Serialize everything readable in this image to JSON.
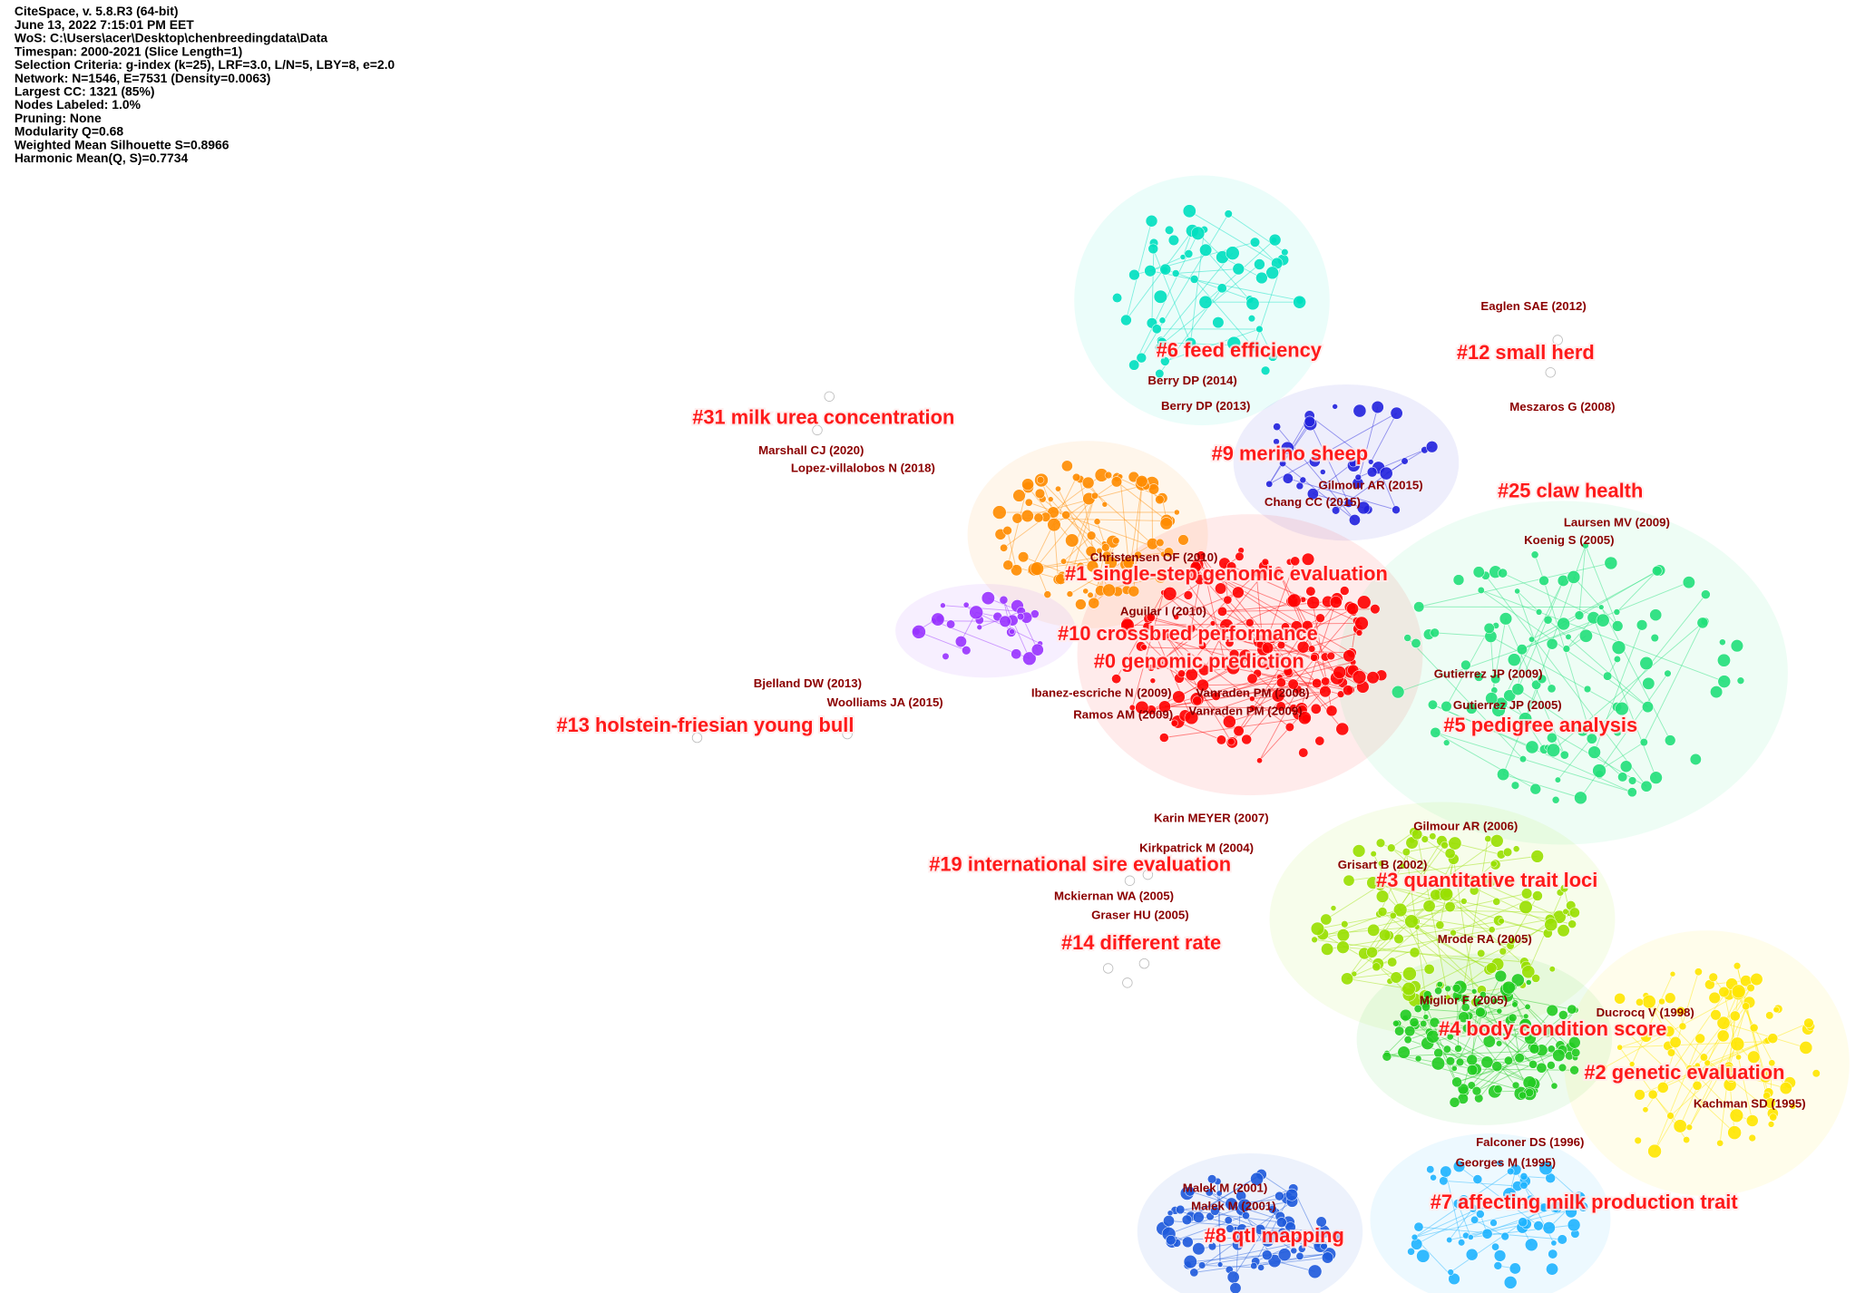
{
  "header": {
    "lines": [
      "CiteSpace, v. 5.8.R3 (64-bit)",
      "June 13, 2022 7:15:01 PM EET",
      "WoS: C:\\Users\\acer\\Desktop\\chenbreedingdata\\Data",
      "Timespan: 2000-2021 (Slice Length=1)",
      "Selection Criteria: g-index (k=25), LRF=3.0, L/N=5, LBY=8, e=2.0",
      "Network: N=1546, E=7531 (Density=0.0063)",
      "Largest CC: 1321 (85%)",
      "Nodes Labeled: 1.0%",
      "Pruning: None",
      "Modularity Q=0.68",
      "Weighted Mean Silhouette S=0.8966",
      "Harmonic Mean(Q, S)=0.7734"
    ]
  },
  "clusters": [
    "#6 feed efficiency",
    "#12 small herd",
    "#31 milk urea concentration",
    "#9 merino sheep",
    "#25 claw health",
    "#1 single-step genomic evaluation",
    "#10 crossbred performance",
    "#0 genomic prediction",
    "#13 holstein-friesian young bull",
    "#5 pedigree analysis",
    "#19 international sire evaluation",
    "#3 quantitative trait loci",
    "#14 different rate",
    "#4 body condition score",
    "#2 genetic evaluation",
    "#7 affecting milk production trait",
    "#8 qtl mapping"
  ],
  "nodes": [
    "Eaglen SAE (2012)",
    "Berry DP (2014)",
    "Meszaros G (2008)",
    "Berry DP (2013)",
    "Marshall CJ (2020)",
    "Lopez-villalobos N (2018)",
    "Gilmour AR (2015)",
    "Chang CC (2015)",
    "Laursen MV (2009)",
    "Koenig S (2005)",
    "Christensen OF (2010)",
    "Aguilar I (2010)",
    "Bjelland DW (2013)",
    "Gutierrez JP (2009)",
    "Ibanez-escriche N (2009)",
    "Vanraden PM (2008)",
    "Woolliams JA (2015)",
    "Gutierrez JP (2005)",
    "Ramos AM (2009)",
    "Vanraden PM (2009)",
    "Karin MEYER (2007)",
    "Gilmour AR (2006)",
    "Kirkpatrick M (2004)",
    "Grisart B (2002)",
    "Mckiernan WA (2005)",
    "Graser HU (2005)",
    "Mrode RA (2005)",
    "Miglior F (2005)",
    "Ducrocq V (1998)",
    "Kachman SD (1995)",
    "Falconer DS (1996)",
    "Georges M (1995)",
    "Malek M (2001)",
    "Malek M (2001)"
  ]
}
